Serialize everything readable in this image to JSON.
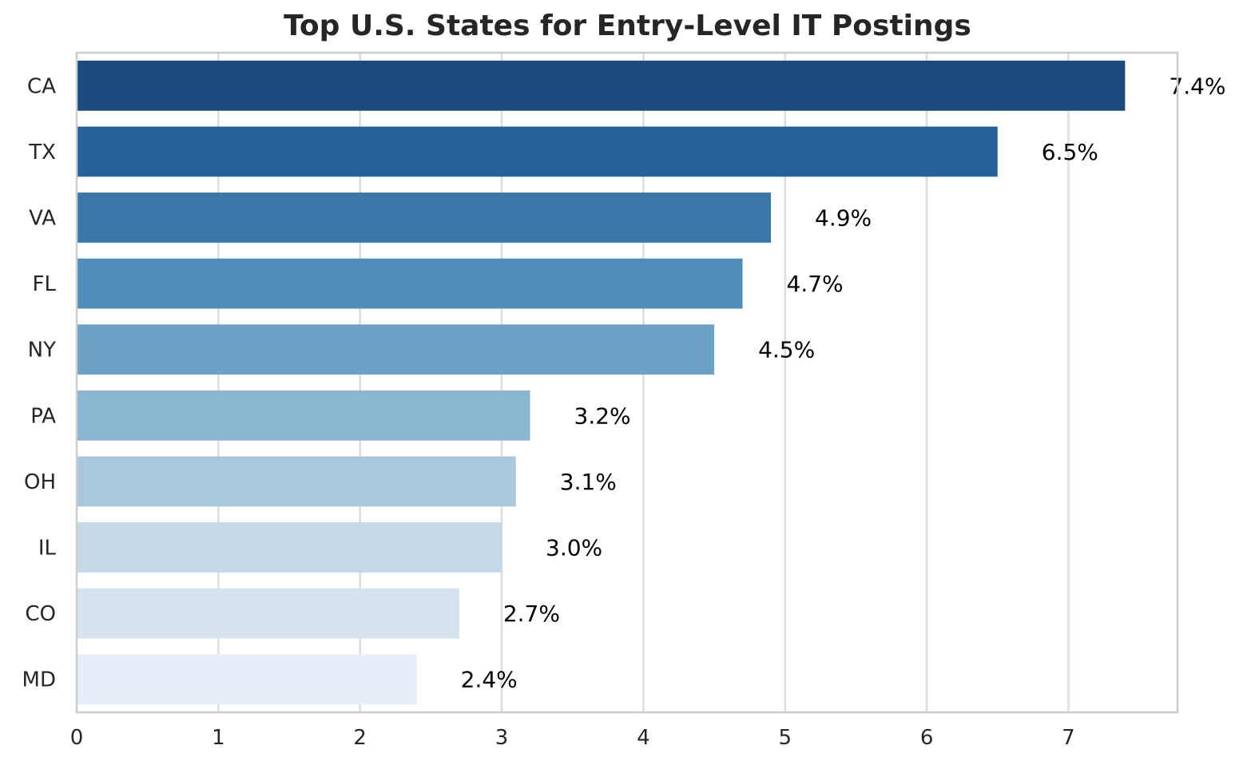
{
  "chart_data": {
    "type": "bar",
    "orientation": "horizontal",
    "title": "Top U.S. States for Entry-Level IT Postings",
    "xlabel": "",
    "ylabel": "",
    "categories": [
      "CA",
      "TX",
      "VA",
      "FL",
      "NY",
      "PA",
      "OH",
      "IL",
      "CO",
      "MD"
    ],
    "values": [
      7.4,
      6.5,
      4.9,
      4.7,
      4.5,
      3.2,
      3.1,
      3.0,
      2.7,
      2.4
    ],
    "data_labels": [
      "7.4%",
      "6.5%",
      "4.9%",
      "4.7%",
      "4.5%",
      "3.2%",
      "3.1%",
      "3.0%",
      "2.7%",
      "2.4%"
    ],
    "xlim": [
      0,
      7.77
    ],
    "xticks": [
      0,
      1,
      2,
      3,
      4,
      5,
      6,
      7
    ],
    "grid": "vertical",
    "colors": [
      "#1b4a7f",
      "#27609a",
      "#3a76a8",
      "#508db9",
      "#6ca2c6",
      "#8bb6d0",
      "#a9c8db",
      "#c4d8e8",
      "#d6e3ef",
      "#e6eff7"
    ]
  }
}
